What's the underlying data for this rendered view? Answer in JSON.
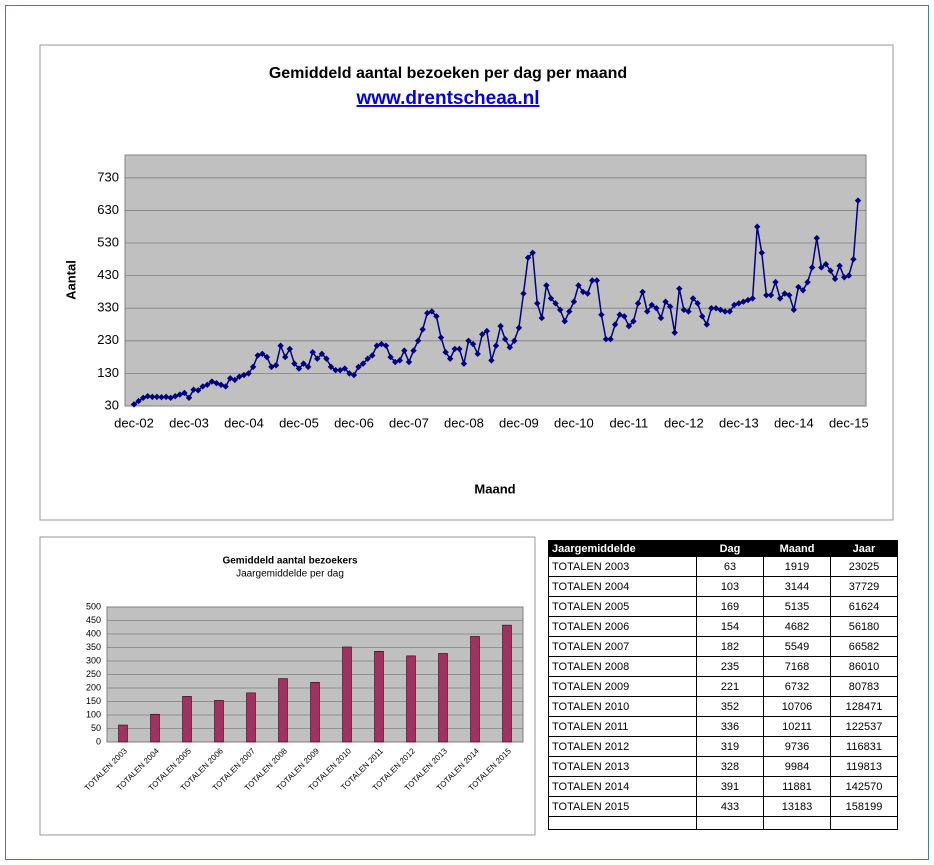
{
  "chart_data": [
    {
      "type": "line",
      "title": "Gemiddeld aantal bezoeken per dag per maand",
      "subtitle": "www.drentscheaa.nl",
      "y_label": "Aantal",
      "x_label": "Maand",
      "color": "#000080",
      "grid": true,
      "ylim": [
        30,
        800
      ],
      "yticks": [
        30,
        130,
        230,
        330,
        430,
        530,
        630,
        730
      ],
      "categories": [
        "dec-02",
        null,
        null,
        null,
        null,
        null,
        null,
        null,
        null,
        null,
        null,
        null,
        "dec-03",
        null,
        null,
        null,
        null,
        null,
        null,
        null,
        null,
        null,
        null,
        null,
        "dec-04",
        null,
        null,
        null,
        null,
        null,
        null,
        null,
        null,
        null,
        null,
        null,
        "dec-05",
        null,
        null,
        null,
        null,
        null,
        null,
        null,
        null,
        null,
        null,
        null,
        "dec-06",
        null,
        null,
        null,
        null,
        null,
        null,
        null,
        null,
        null,
        null,
        null,
        "dec-07",
        null,
        null,
        null,
        null,
        null,
        null,
        null,
        null,
        null,
        null,
        null,
        "dec-08",
        null,
        null,
        null,
        null,
        null,
        null,
        null,
        null,
        null,
        null,
        null,
        "dec-09",
        null,
        null,
        null,
        null,
        null,
        null,
        null,
        null,
        null,
        null,
        null,
        "dec-10",
        null,
        null,
        null,
        null,
        null,
        null,
        null,
        null,
        null,
        null,
        null,
        "dec-11",
        null,
        null,
        null,
        null,
        null,
        null,
        null,
        null,
        null,
        null,
        null,
        "dec-12",
        null,
        null,
        null,
        null,
        null,
        null,
        null,
        null,
        null,
        null,
        null,
        "dec-13",
        null,
        null,
        null,
        null,
        null,
        null,
        null,
        null,
        null,
        null,
        null,
        "dec-14",
        null,
        null,
        null,
        null,
        null,
        null,
        null,
        null,
        null,
        null,
        null,
        "dec-15",
        null,
        null
      ],
      "values": [
        35,
        45,
        55,
        60,
        58,
        58,
        57,
        58,
        55,
        60,
        65,
        70,
        55,
        80,
        78,
        90,
        95,
        105,
        100,
        95,
        90,
        115,
        110,
        120,
        125,
        130,
        150,
        185,
        190,
        180,
        150,
        155,
        215,
        180,
        205,
        160,
        145,
        160,
        150,
        195,
        175,
        190,
        175,
        150,
        140,
        140,
        145,
        130,
        125,
        150,
        160,
        175,
        185,
        215,
        220,
        215,
        180,
        165,
        170,
        200,
        165,
        200,
        230,
        265,
        315,
        320,
        305,
        240,
        195,
        175,
        205,
        205,
        160,
        230,
        220,
        190,
        250,
        260,
        170,
        215,
        275,
        235,
        210,
        230,
        270,
        375,
        485,
        500,
        345,
        300,
        400,
        360,
        345,
        325,
        290,
        320,
        350,
        400,
        380,
        375,
        415,
        415,
        310,
        235,
        235,
        280,
        310,
        305,
        275,
        290,
        345,
        380,
        320,
        340,
        330,
        300,
        350,
        335,
        255,
        390,
        325,
        320,
        360,
        345,
        305,
        280,
        330,
        330,
        325,
        320,
        320,
        340,
        345,
        350,
        355,
        360,
        580,
        500,
        370,
        370,
        410,
        360,
        375,
        370,
        325,
        395,
        385,
        410,
        455,
        545,
        455,
        465,
        445,
        420,
        460,
        425,
        430,
        480,
        660
      ]
    },
    {
      "type": "bar",
      "title": "Gemiddeld aantal bezoekers",
      "subtitle": "Jaargemiddelde per dag",
      "color": "#a3305f",
      "grid": true,
      "ylim": [
        0,
        500
      ],
      "yticks": [
        0,
        50,
        100,
        150,
        200,
        250,
        300,
        350,
        400,
        450,
        500
      ],
      "categories": [
        "TOTALEN 2003",
        "TOTALEN 2004",
        "TOTALEN 2005",
        "TOTALEN 2006",
        "TOTALEN 2007",
        "TOTALEN 2008",
        "TOTALEN 2009",
        "TOTALEN 2010",
        "TOTALEN 2011",
        "TOTALEN 2012",
        "TOTALEN 2013",
        "TOTALEN 2014",
        "TOTALEN 2015"
      ],
      "values": [
        63,
        103,
        169,
        154,
        182,
        235,
        221,
        352,
        336,
        319,
        328,
        391,
        433
      ]
    }
  ],
  "table": {
    "header": [
      "Jaargemiddelde",
      "Dag",
      "Maand",
      "Jaar"
    ],
    "rows": [
      [
        "TOTALEN 2003",
        63,
        1919,
        23025
      ],
      [
        "TOTALEN 2004",
        103,
        3144,
        37729
      ],
      [
        "TOTALEN 2005",
        169,
        5135,
        61624
      ],
      [
        "TOTALEN 2006",
        154,
        4682,
        56180
      ],
      [
        "TOTALEN 2007",
        182,
        5549,
        66582
      ],
      [
        "TOTALEN 2008",
        235,
        7168,
        86010
      ],
      [
        "TOTALEN 2009",
        221,
        6732,
        80783
      ],
      [
        "TOTALEN 2010",
        352,
        10706,
        128471
      ],
      [
        "TOTALEN 2011",
        336,
        10211,
        122537
      ],
      [
        "TOTALEN 2012",
        319,
        9736,
        116831
      ],
      [
        "TOTALEN 2013",
        328,
        9984,
        119813
      ],
      [
        "TOTALEN 2014",
        391,
        11881,
        142570
      ],
      [
        "TOTALEN 2015",
        433,
        13183,
        158199
      ]
    ]
  }
}
